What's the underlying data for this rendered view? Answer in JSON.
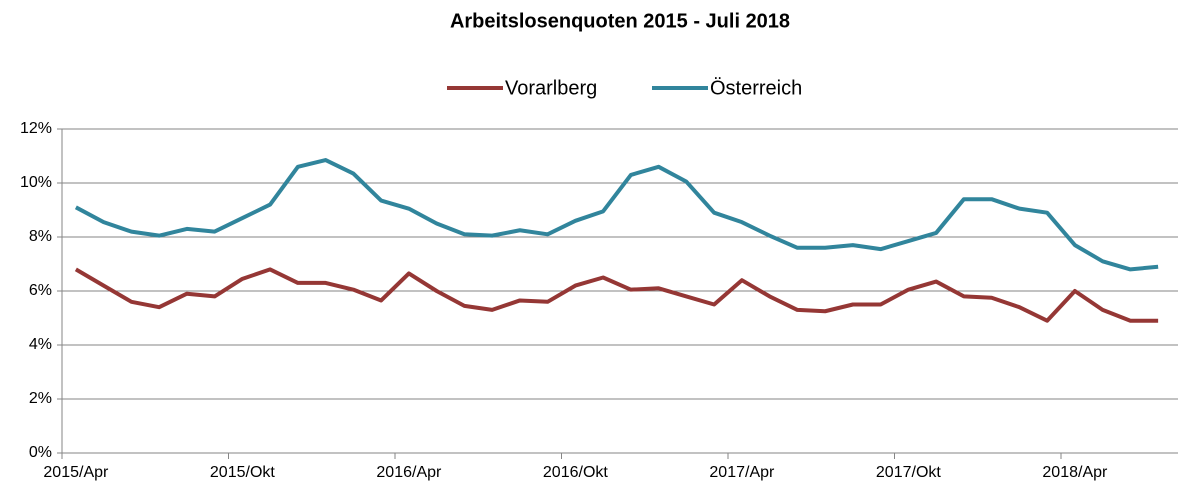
{
  "chart_data": {
    "type": "line",
    "title": "Arbeitslosenquoten 2015 - Juli 2018",
    "categories": [
      "2015/Apr",
      null,
      null,
      null,
      null,
      null,
      "2015/Okt",
      null,
      null,
      null,
      null,
      null,
      "2016/Apr",
      null,
      null,
      null,
      null,
      null,
      "2016/Okt",
      null,
      null,
      null,
      null,
      null,
      "2017/Apr",
      null,
      null,
      null,
      null,
      null,
      "2017/Okt",
      null,
      null,
      null,
      null,
      null,
      "2018/Apr",
      null,
      null,
      null
    ],
    "series": [
      {
        "name": "Vorarlberg",
        "color": "#953735",
        "values": [
          6.8,
          6.2,
          5.6,
          5.4,
          5.9,
          5.8,
          6.45,
          6.8,
          6.3,
          6.3,
          6.05,
          5.65,
          6.65,
          6.0,
          5.45,
          5.3,
          5.65,
          5.6,
          6.2,
          6.5,
          6.05,
          6.1,
          5.8,
          5.5,
          6.4,
          5.8,
          5.3,
          5.25,
          5.5,
          5.5,
          6.05,
          6.35,
          5.8,
          5.75,
          5.4,
          4.9,
          6.0,
          5.3,
          4.9,
          4.9
        ]
      },
      {
        "name": "Österreich",
        "color": "#31859c",
        "values": [
          9.1,
          8.55,
          8.2,
          8.05,
          8.3,
          8.2,
          8.7,
          9.2,
          10.6,
          10.85,
          10.35,
          9.35,
          9.05,
          8.5,
          8.1,
          8.05,
          8.25,
          8.1,
          8.6,
          8.95,
          10.3,
          10.6,
          10.05,
          8.9,
          8.55,
          8.05,
          7.6,
          7.6,
          7.7,
          7.55,
          7.85,
          8.15,
          9.4,
          9.4,
          9.05,
          8.9,
          7.7,
          7.1,
          6.8,
          6.9
        ]
      }
    ],
    "ylim": [
      0,
      12
    ],
    "yticks": [
      {
        "value": 0,
        "label": "0%"
      },
      {
        "value": 2,
        "label": "2%"
      },
      {
        "value": 4,
        "label": "4%"
      },
      {
        "value": 6,
        "label": "6%"
      },
      {
        "value": 8,
        "label": "8%"
      },
      {
        "value": 10,
        "label": "10%"
      },
      {
        "value": 12,
        "label": "12%"
      }
    ],
    "grid": true,
    "legend": "top"
  }
}
